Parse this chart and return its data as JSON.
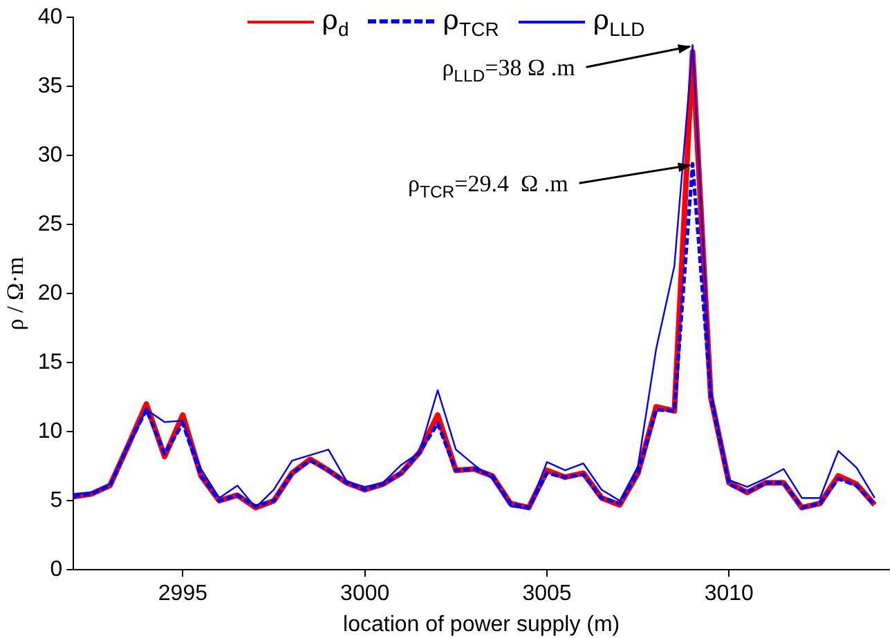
{
  "chart_data": {
    "type": "line",
    "xlabel": "location of power supply (m)",
    "ylabel": "ρ / Ω·m",
    "x": [
      2992,
      2992.5,
      2993,
      2993.5,
      2994,
      2994.5,
      2995,
      2995.5,
      2996,
      2996.5,
      2997,
      2997.5,
      2998,
      2998.5,
      2999,
      2999.5,
      3000,
      3000.5,
      3001,
      3001.5,
      3002,
      3002.5,
      3003,
      3003.5,
      3004,
      3004.5,
      3005,
      3005.5,
      3006,
      3006.5,
      3007,
      3007.5,
      3008,
      3008.5,
      3009,
      3009.5,
      3010,
      3010.5,
      3011,
      3011.5,
      3012,
      3012.5,
      3013,
      3013.5,
      3014
    ],
    "series": [
      {
        "name": "ρ$_{d}$",
        "color": "#ff0000",
        "line_style": "solid",
        "values": [
          5.3,
          5.5,
          6.1,
          9.0,
          12.0,
          8.2,
          11.2,
          6.8,
          5.0,
          5.4,
          4.5,
          5.0,
          7.0,
          8.0,
          7.2,
          6.3,
          5.8,
          6.2,
          7.0,
          8.5,
          11.2,
          7.2,
          7.3,
          6.8,
          4.8,
          4.5,
          7.2,
          6.7,
          7.0,
          5.2,
          4.7,
          7.0,
          11.8,
          11.5,
          37.5,
          12.5,
          6.3,
          5.6,
          6.3,
          6.3,
          4.5,
          4.8,
          6.8,
          6.2,
          4.7
        ]
      },
      {
        "name": "ρ$_{TCR}$",
        "color": "#0000ff",
        "line_style": "dashed",
        "values": [
          5.3,
          5.5,
          6.1,
          9.0,
          11.6,
          8.4,
          10.6,
          6.8,
          5.0,
          5.4,
          4.6,
          5.0,
          7.0,
          7.9,
          7.2,
          6.3,
          5.8,
          6.2,
          7.0,
          8.5,
          10.6,
          7.2,
          7.3,
          6.8,
          4.8,
          4.5,
          7.0,
          6.7,
          6.9,
          5.2,
          4.8,
          7.0,
          11.6,
          11.5,
          29.4,
          12.5,
          6.2,
          5.6,
          6.3,
          6.3,
          4.5,
          4.8,
          6.6,
          6.1,
          4.7
        ]
      },
      {
        "name": "ρ$_{LLD}$",
        "color": "#0000ff",
        "line_style": "solid",
        "values": [
          5.5,
          5.6,
          6.2,
          9.0,
          11.6,
          10.7,
          10.8,
          7.3,
          5.2,
          6.1,
          4.5,
          5.8,
          7.9,
          8.3,
          8.7,
          6.4,
          6.0,
          6.3,
          7.6,
          8.5,
          13.0,
          8.7,
          7.6,
          6.6,
          4.6,
          4.4,
          7.8,
          7.2,
          7.7,
          5.8,
          5.0,
          7.5,
          16.0,
          22.0,
          38.0,
          13.0,
          6.5,
          6.0,
          6.6,
          7.3,
          5.2,
          5.2,
          8.6,
          7.4,
          5.2
        ]
      }
    ],
    "xlim": [
      2992,
      3014.4
    ],
    "xticks": [
      2995,
      3000,
      3005,
      3010
    ],
    "ylim": [
      0,
      40
    ],
    "yticks": [
      0,
      5,
      10,
      15,
      20,
      25,
      30,
      35,
      40
    ],
    "grid": false,
    "legend": "top",
    "annotations": [
      {
        "text": "ρ$_{LLD}$=38 Ω .m",
        "x": 3009,
        "y": 38
      },
      {
        "text": "ρ$_{TCR}$=29.4  Ω .m",
        "x": 3009,
        "y": 29.4
      }
    ]
  }
}
